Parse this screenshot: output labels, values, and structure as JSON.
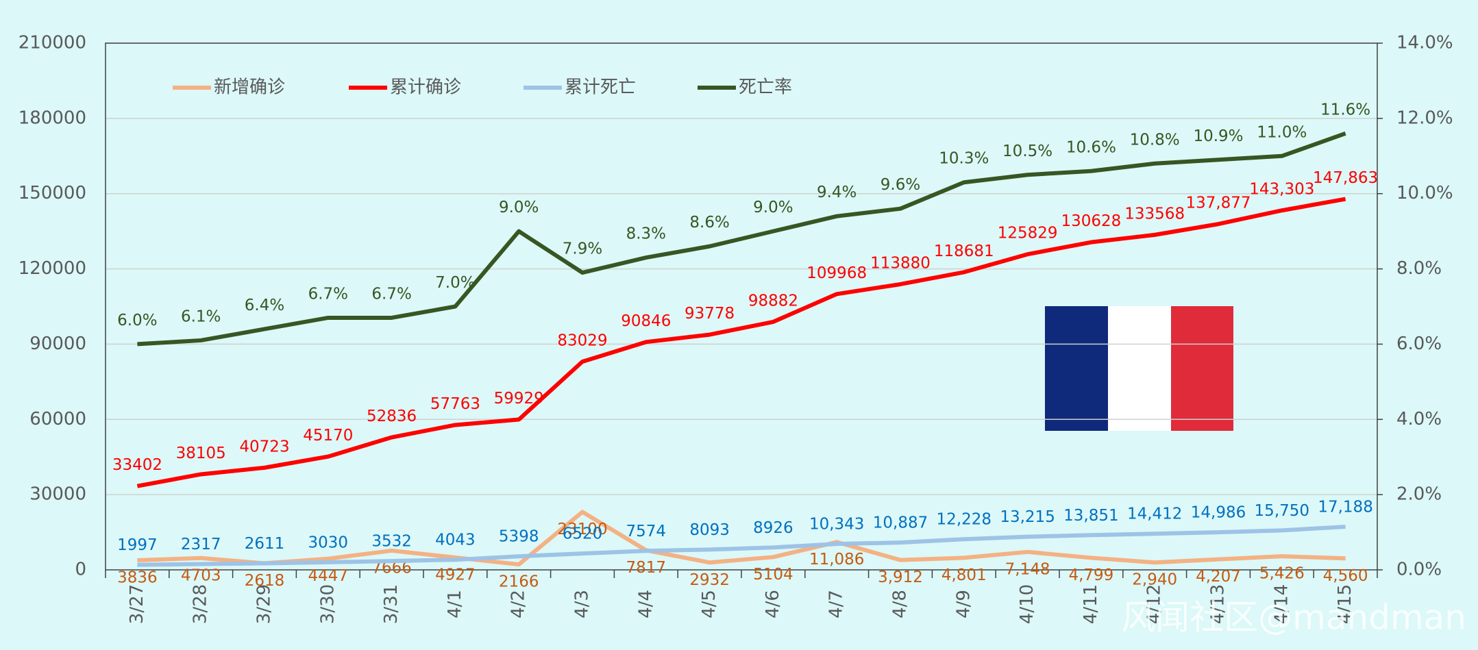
{
  "chart_data": {
    "type": "line",
    "categories": [
      "3/27",
      "3/28",
      "3/29",
      "3/30",
      "3/31",
      "4/1",
      "4/2",
      "4/3",
      "4/4",
      "4/5",
      "4/6",
      "4/7",
      "4/8",
      "4/9",
      "4/10",
      "4/11",
      "4/12",
      "4/13",
      "4/14",
      "4/15"
    ],
    "series": [
      {
        "name": "新增确诊",
        "color": "#f4b183",
        "label_color": "#c55a11",
        "values": [
          3836,
          4703,
          2618,
          4447,
          7666,
          4927,
          2166,
          23100,
          7817,
          2932,
          5104,
          11086,
          3912,
          4801,
          7148,
          4799,
          2940,
          4207,
          5426,
          4560
        ],
        "value_labels": [
          "3836",
          "4703",
          "2618",
          "4447",
          "7666",
          "4927",
          "2166",
          "23100",
          "7817",
          "2932",
          "5104",
          "11,086",
          "3,912",
          "4,801",
          "7,148",
          "4,799",
          "2,940",
          "4,207",
          "5,426",
          "4,560"
        ]
      },
      {
        "name": "累计确诊",
        "color": "#ff0000",
        "label_color": "#ff0000",
        "values": [
          33402,
          38105,
          40723,
          45170,
          52836,
          57763,
          59929,
          83029,
          90846,
          93778,
          98882,
          109968,
          113880,
          118681,
          125829,
          130628,
          133568,
          137877,
          143303,
          147863
        ],
        "value_labels": [
          "33402",
          "38105",
          "40723",
          "45170",
          "52836",
          "57763",
          "59929",
          "83029",
          "90846",
          "93778",
          "98882",
          "109968",
          "113880",
          "118681",
          "125829",
          "130628",
          "133568",
          "137,877",
          "143,303",
          "147,863"
        ]
      },
      {
        "name": "累计死亡",
        "color": "#9dc3e6",
        "label_color": "#0070c0",
        "values": [
          1997,
          2317,
          2611,
          3030,
          3532,
          4043,
          5398,
          6520,
          7574,
          8093,
          8926,
          10343,
          10887,
          12228,
          13215,
          13851,
          14412,
          14986,
          15750,
          17188
        ],
        "value_labels": [
          "1997",
          "2317",
          "2611",
          "3030",
          "3532",
          "4043",
          "5398",
          "6520",
          "7574",
          "8093",
          "8926",
          "10,343",
          "10,887",
          "12,228",
          "13,215",
          "13,851",
          "14,412",
          "14,986",
          "15,750",
          "17,188"
        ]
      },
      {
        "name": "死亡率",
        "color": "#375623",
        "label_color": "#375623",
        "axis": "y2",
        "values": [
          6.0,
          6.1,
          6.4,
          6.7,
          6.7,
          7.0,
          9.0,
          7.9,
          8.3,
          8.6,
          9.0,
          9.4,
          9.6,
          10.3,
          10.5,
          10.6,
          10.8,
          10.9,
          11.0,
          11.6
        ],
        "value_labels": [
          "6.0%",
          "6.1%",
          "6.4%",
          "6.7%",
          "6.7%",
          "7.0%",
          "9.0%",
          "7.9%",
          "8.3%",
          "8.6%",
          "9.0%",
          "9.4%",
          "9.6%",
          "10.3%",
          "10.5%",
          "10.6%",
          "10.8%",
          "10.9%",
          "11.0%",
          "11.6%"
        ]
      }
    ],
    "ylim": [
      0,
      210000
    ],
    "yticks": [
      0,
      30000,
      60000,
      90000,
      120000,
      150000,
      180000,
      210000
    ],
    "y2lim": [
      0,
      14
    ],
    "y2ticks": [
      {
        "value": 0,
        "label": "0.0%"
      },
      {
        "value": 2,
        "label": "2.0%"
      },
      {
        "value": 4,
        "label": "4.0%"
      },
      {
        "value": 6,
        "label": "6.0%"
      },
      {
        "value": 8,
        "label": "8.0%"
      },
      {
        "value": 10,
        "label": "10.0%"
      },
      {
        "value": 12,
        "label": "12.0%"
      },
      {
        "value": 14,
        "label": "14.0%"
      }
    ],
    "grid": true,
    "legend": "top-left",
    "watermark": "风闻社区@mandman"
  }
}
